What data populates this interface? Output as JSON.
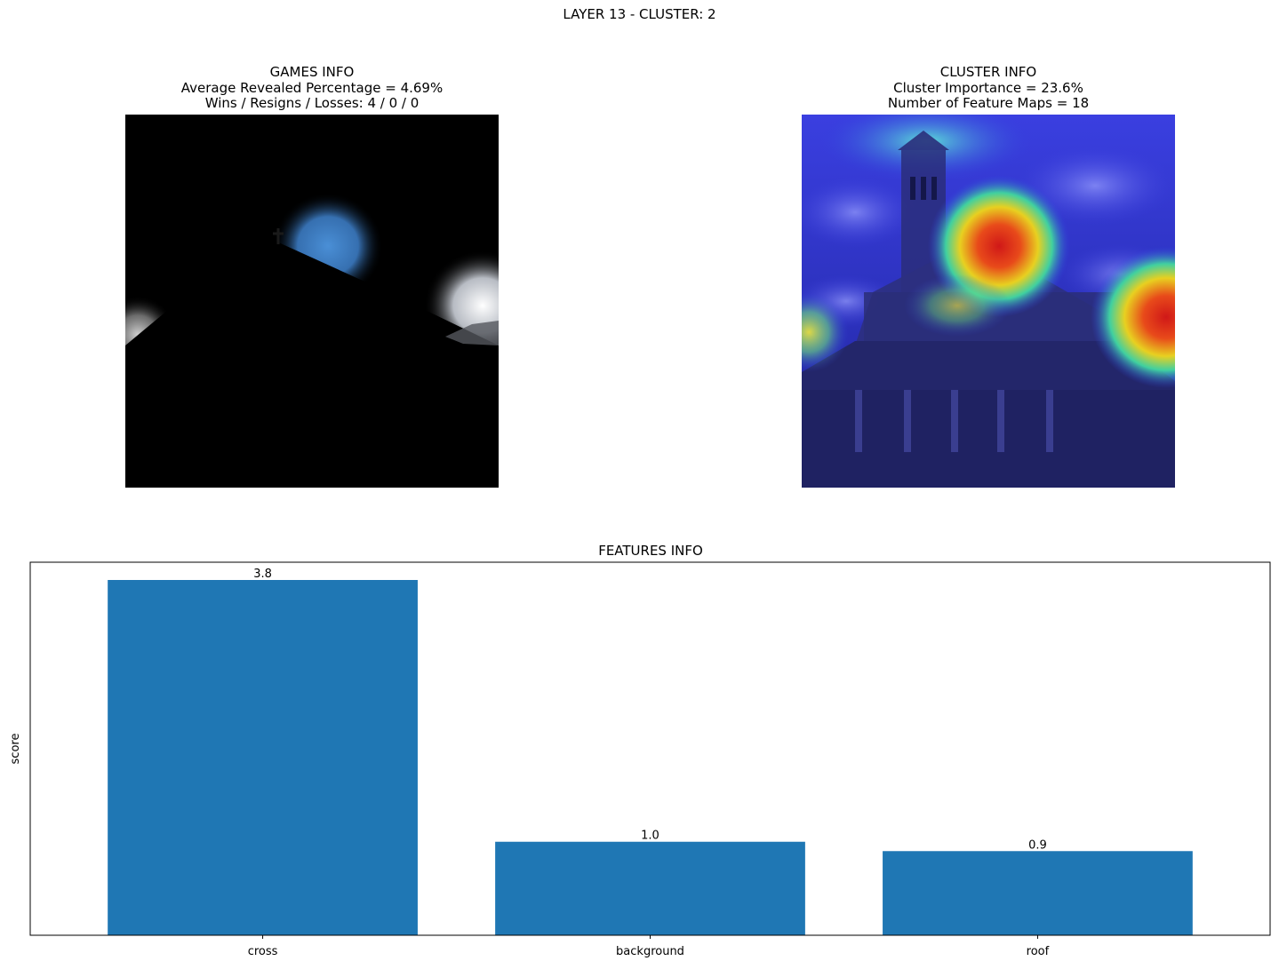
{
  "figure": {
    "suptitle": "LAYER 13 - CLUSTER: 2"
  },
  "games_panel": {
    "heading": "GAMES INFO",
    "line1": "Average Revealed Percentage = 4.69%",
    "line2": "Wins / Resigns / Losses: 4 / 0 / 0"
  },
  "cluster_panel": {
    "heading": "CLUSTER INFO",
    "line1": "Cluster Importance = 23.6%",
    "line2": "Number of Feature Maps = 18"
  },
  "chart_data": {
    "type": "bar",
    "title": "FEATURES INFO",
    "xlabel": "",
    "ylabel": "score",
    "categories": [
      "cross",
      "background",
      "roof"
    ],
    "values": [
      3.8,
      1.0,
      0.9
    ],
    "value_labels": [
      "3.8",
      "1.0",
      "0.9"
    ],
    "ylim": [
      0,
      3.99
    ],
    "bar_color": "#1f77b4",
    "grid": false,
    "y_ticks_visible": false
  }
}
